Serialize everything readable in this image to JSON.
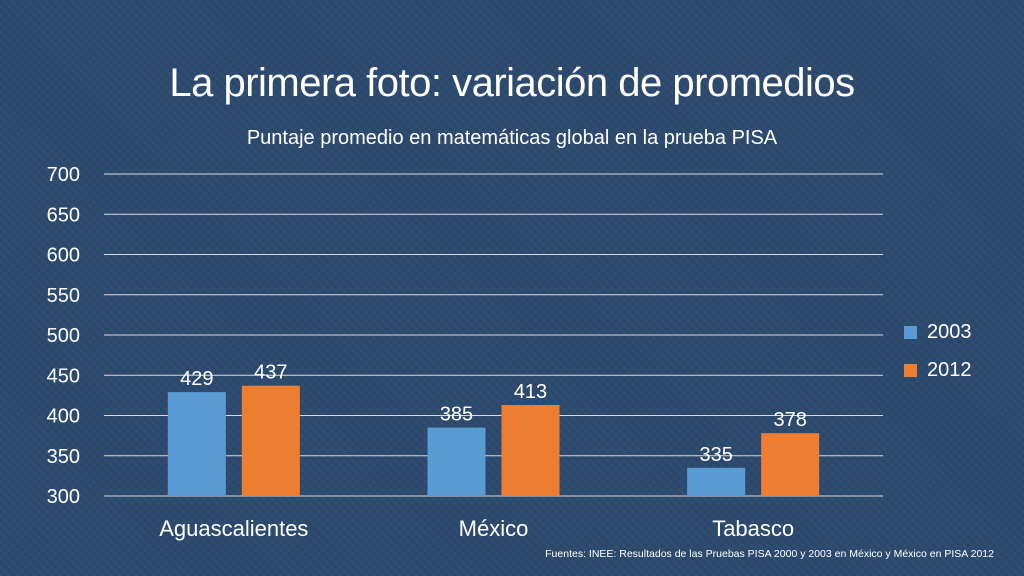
{
  "slide": {
    "title": "La primera foto: variación de promedios",
    "source": "Fuentes: INEE: Resultados de las Pruebas PISA 2000 y 2003 en México y México en PISA 2012"
  },
  "colors": {
    "background": "#2c4a6e",
    "series_2003": "#5b9bd5",
    "series_2012": "#ed7d31",
    "gridline": "#d9d9d9",
    "text": "#ffffff"
  },
  "chart_data": {
    "type": "bar",
    "title": "Puntaje promedio en matemáticas global en la prueba PISA",
    "xlabel": "",
    "ylabel": "",
    "categories": [
      "Aguascalientes",
      "México",
      "Tabasco"
    ],
    "series": [
      {
        "name": "2003",
        "values": [
          429,
          385,
          335
        ]
      },
      {
        "name": "2012",
        "values": [
          437,
          413,
          378
        ]
      }
    ],
    "ylim": [
      300,
      700
    ],
    "yticks": [
      "300",
      "350",
      "400",
      "450",
      "500",
      "550",
      "600",
      "650",
      "700"
    ],
    "grid": true,
    "legend_position": "right",
    "data_labels": true
  }
}
